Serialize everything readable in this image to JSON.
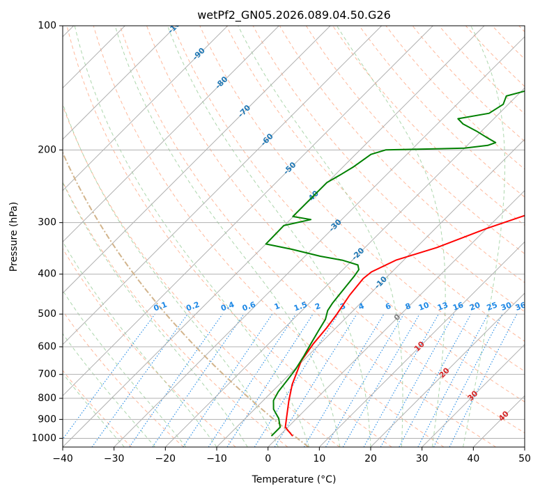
{
  "chart_data": {
    "type": "line",
    "title": "wetPf2_GN05.2026.089.04.50.G26",
    "xlabel": "Temperature (°C)",
    "ylabel": "Pressure (hPa)",
    "xlim": [
      -40,
      50
    ],
    "ylim": [
      1050,
      100
    ],
    "y_scale": "log",
    "x_ticks": [
      -40,
      -30,
      -20,
      -10,
      0,
      10,
      20,
      30,
      40,
      50
    ],
    "x_tick_labels": [
      "−40",
      "−30",
      "−20",
      "−10",
      "0",
      "10",
      "20",
      "30",
      "40",
      "50"
    ],
    "y_ticks": [
      1000,
      900,
      800,
      700,
      600,
      500,
      400,
      300,
      200,
      100
    ],
    "y_tick_labels": [
      "1000",
      "900",
      "800",
      "700",
      "600",
      "500",
      "400",
      "300",
      "200",
      "100"
    ],
    "grid": true,
    "skew": "skew-T log-p",
    "series": [
      {
        "role": "temperature",
        "color": "#ff0000",
        "points": [
          [
            2.5,
            985
          ],
          [
            -0.5,
            940
          ],
          [
            -2.5,
            880
          ],
          [
            -5,
            810
          ],
          [
            -7.5,
            740
          ],
          [
            -10.3,
            650
          ],
          [
            -11.3,
            590
          ],
          [
            -11.8,
            540
          ],
          [
            -12.5,
            500
          ],
          [
            -13.7,
            450
          ],
          [
            -14.3,
            410
          ],
          [
            -14.0,
            395
          ],
          [
            -11.5,
            370
          ],
          [
            -6,
            345
          ],
          [
            0,
            310
          ],
          [
            4.5,
            290
          ],
          [
            8.5,
            275
          ],
          [
            12,
            262
          ],
          [
            13,
            250
          ],
          [
            13.3,
            240
          ],
          [
            14,
            225
          ],
          [
            15,
            212
          ],
          [
            16,
            200
          ],
          [
            17,
            190
          ],
          [
            18.5,
            180
          ],
          [
            23,
            160
          ],
          [
            27,
            140
          ],
          [
            29.5,
            125
          ],
          [
            32.5,
            110
          ],
          [
            33.5,
            100
          ]
        ],
        "stroke_width": 2
      },
      {
        "role": "dewpoint",
        "color": "#008000",
        "points": [
          [
            -1.5,
            985
          ],
          [
            -1.5,
            940
          ],
          [
            -3.5,
            895
          ],
          [
            -6.3,
            850
          ],
          [
            -8,
            810
          ],
          [
            -8.8,
            770
          ],
          [
            -9.3,
            720
          ],
          [
            -9.8,
            680
          ],
          [
            -10.8,
            630
          ],
          [
            -11.8,
            590
          ],
          [
            -12.8,
            550
          ],
          [
            -13.7,
            515
          ],
          [
            -15,
            490
          ],
          [
            -15.5,
            470
          ],
          [
            -15.8,
            450
          ],
          [
            -16.1,
            430
          ],
          [
            -16.5,
            405
          ],
          [
            -16.9,
            390
          ],
          [
            -18,
            380
          ],
          [
            -22,
            370
          ],
          [
            -27,
            362
          ],
          [
            -34,
            348
          ],
          [
            -40,
            338
          ],
          [
            -40.1,
            305
          ],
          [
            -36,
            295
          ],
          [
            -40.1,
            290
          ],
          [
            -40.1,
            240
          ],
          [
            -39,
            230
          ],
          [
            -38,
            220
          ],
          [
            -37,
            205
          ],
          [
            -35,
            200
          ],
          [
            -20,
            198
          ],
          [
            -16,
            195
          ],
          [
            -15,
            192
          ],
          [
            -18,
            186
          ],
          [
            -21,
            180
          ],
          [
            -25,
            173
          ],
          [
            -27,
            168
          ],
          [
            -22,
            163
          ],
          [
            -21,
            155
          ],
          [
            -22,
            148
          ],
          [
            -18,
            142
          ],
          [
            -14,
            133
          ],
          [
            -11,
            120
          ],
          [
            -7,
            110
          ],
          [
            -3,
            103
          ],
          [
            -2,
            100
          ]
        ],
        "stroke_width": 2
      }
    ],
    "mixing_ratio_labels": [
      "0.1",
      "0.2",
      "0.4",
      "0.6",
      "1",
      "1.5",
      "2",
      "3",
      "4",
      "6",
      "8",
      "10",
      "13",
      "16",
      "20",
      "25",
      "30",
      "36"
    ],
    "mixing_ratio_values": [
      0.1,
      0.2,
      0.4,
      0.6,
      1,
      1.5,
      2,
      3,
      4,
      6,
      8,
      10,
      13,
      16,
      20,
      25,
      30,
      36
    ],
    "isotherm_labels_blue": [
      "-100",
      "-90",
      "-80",
      "-70",
      "-60",
      "-50",
      "-40",
      "-30",
      "-20",
      "-10"
    ],
    "isotherm_labels_blue_values": [
      -100,
      -90,
      -80,
      -70,
      -60,
      -50,
      -40,
      -30,
      -20,
      -10
    ],
    "isotherm_labels_gray": [
      "0"
    ],
    "isotherm_labels_red": [
      "10",
      "20",
      "30",
      "40"
    ],
    "isotherm_labels_red_values": [
      10,
      20,
      30,
      40
    ],
    "colors": {
      "temperature": "#ff0000",
      "dewpoint": "#008000",
      "grid": "#b0b0b0",
      "dry_adiabat": "#ffa07a",
      "moist_adiabat": "#90c890",
      "mixing_ratio": "#1e88e5",
      "isotherm_label_blue": "#1f77b4",
      "isotherm_label_red": "#d62728",
      "isotherm_label_gray": "#808080",
      "special_dry_adiabat": "#d2b48c"
    }
  }
}
